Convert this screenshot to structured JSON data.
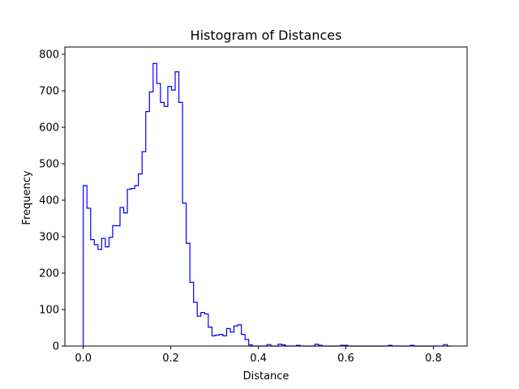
{
  "chart_data": {
    "type": "histogram",
    "title": "Histogram of Distances",
    "xlabel": "Distance",
    "ylabel": "Frequency",
    "xlim": [
      -0.042,
      0.877
    ],
    "ylim": [
      0,
      820
    ],
    "xticks": [
      0.0,
      0.2,
      0.4,
      0.6,
      0.8
    ],
    "xtick_labels": [
      "0.0",
      "0.2",
      "0.4",
      "0.6",
      "0.8"
    ],
    "yticks": [
      0,
      100,
      200,
      300,
      400,
      500,
      600,
      700,
      800
    ],
    "ytick_labels": [
      "0",
      "100",
      "200",
      "300",
      "400",
      "500",
      "600",
      "700",
      "800"
    ],
    "grid": false,
    "histtype": "step",
    "color": "#0000ff",
    "bin_width": 0.0084,
    "bins_start": 0.0,
    "counts": [
      440,
      378,
      292,
      278,
      265,
      295,
      272,
      298,
      330,
      330,
      380,
      365,
      430,
      432,
      440,
      472,
      533,
      643,
      697,
      775,
      720,
      668,
      657,
      712,
      702,
      752,
      668,
      392,
      282,
      175,
      120,
      82,
      92,
      88,
      52,
      28,
      30,
      32,
      28,
      48,
      38,
      55,
      58,
      32,
      18,
      3,
      0,
      0,
      0,
      0,
      4,
      0,
      0,
      5,
      3,
      0,
      0,
      0,
      2,
      0,
      0,
      0,
      0,
      5,
      2,
      0,
      0,
      0,
      0,
      0,
      2,
      2,
      0,
      0,
      0,
      0,
      0,
      0,
      0,
      0,
      0,
      0,
      0,
      2,
      0,
      0,
      0,
      0,
      0,
      2,
      0,
      0,
      0,
      0,
      0,
      0,
      0,
      0,
      4,
      0
    ]
  }
}
